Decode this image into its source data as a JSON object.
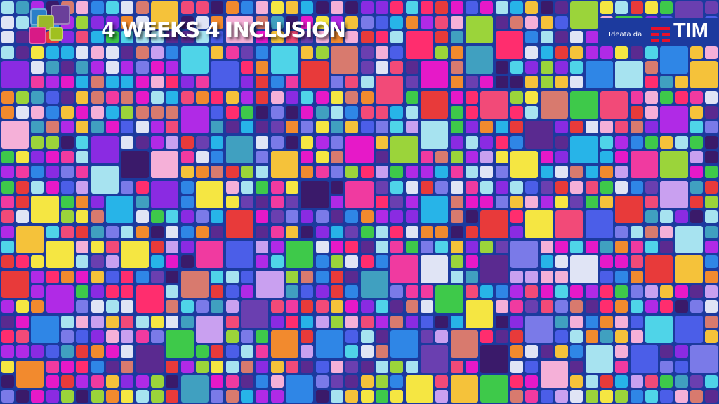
{
  "banner": {
    "title": "4 WEEKS 4 INCLUSION",
    "credit_prefix": "Ideata da",
    "brand": "TIM"
  },
  "colors": {
    "background": "#1c3a9e",
    "brand_red": "#e8102a",
    "palette": [
      "#e619c8",
      "#f03aa0",
      "#8a2be2",
      "#4b5ee8",
      "#2f86e6",
      "#27b4e8",
      "#4fd4e8",
      "#a7e3f0",
      "#f5b0d8",
      "#f24a78",
      "#ff2d6e",
      "#f28a2e",
      "#f5c23a",
      "#f5e642",
      "#9bd43a",
      "#3ec94a",
      "#6a3fb0",
      "#b02ae6",
      "#5a2a90",
      "#c9a0f0",
      "#e0e4f5",
      "#d87a6e",
      "#3a1a6a",
      "#7a7ae8",
      "#e83a3a",
      "#40a0c0"
    ]
  },
  "logo_icon": "four-overlapping-squares-logo"
}
